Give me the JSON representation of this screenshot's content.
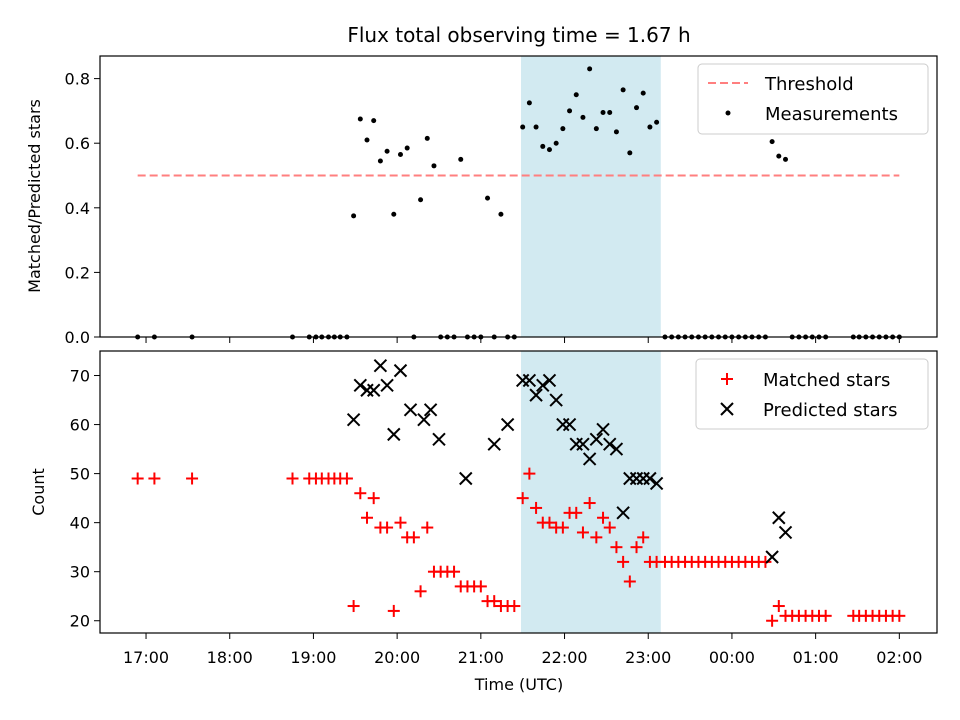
{
  "chart_data": [
    {
      "type": "scatter",
      "title": "Flux total observing time = 1.67 h",
      "xlabel": "",
      "ylabel": "Matched/Predicted stars",
      "ylim": [
        0,
        0.87
      ],
      "yticks": [
        0.0,
        0.2,
        0.4,
        0.6,
        0.8
      ],
      "ytick_labels": [
        "0.0",
        "0.2",
        "0.4",
        "0.6",
        "0.8"
      ],
      "x_unit": "hours since 00:00 UTC of first night (values above 24 are after midnight)",
      "highlight": {
        "x_start": 21.48,
        "x_end": 23.15,
        "color": "#add8e6"
      },
      "legend": {
        "position": "top-right",
        "entries": [
          "Threshold",
          "Measurements"
        ]
      },
      "series": [
        {
          "name": "Threshold",
          "kind": "line",
          "color": "#ff7f7f",
          "x": [
            16.9,
            26.0
          ],
          "y": [
            0.5,
            0.5
          ]
        },
        {
          "name": "Measurements",
          "kind": "points",
          "color": "#000000",
          "x": [
            16.9,
            17.1,
            17.55,
            18.75,
            18.95,
            19.03,
            19.1,
            19.18,
            19.25,
            19.32,
            19.4,
            19.48,
            19.56,
            19.64,
            19.72,
            19.8,
            19.88,
            19.96,
            20.04,
            20.12,
            20.2,
            20.28,
            20.36,
            20.44,
            20.52,
            20.6,
            20.68,
            20.76,
            20.84,
            20.92,
            21.0,
            21.08,
            21.16,
            21.24,
            21.32,
            21.4,
            21.5,
            21.58,
            21.66,
            21.74,
            21.82,
            21.9,
            21.98,
            22.06,
            22.14,
            22.22,
            22.3,
            22.38,
            22.46,
            22.54,
            22.62,
            22.7,
            22.78,
            22.86,
            22.94,
            23.02,
            23.1,
            23.2,
            23.28,
            23.36,
            23.44,
            23.52,
            23.6,
            23.68,
            23.76,
            23.84,
            23.92,
            24.0,
            24.08,
            24.16,
            24.24,
            24.32,
            24.4,
            24.48,
            24.56,
            24.64,
            24.72,
            24.8,
            24.88,
            24.96,
            25.04,
            25.12,
            25.45,
            25.52,
            25.6,
            25.68,
            25.76,
            25.84,
            25.92,
            26.0
          ],
          "y": [
            0.0,
            0.0,
            0.0,
            0.0,
            0.0,
            0.0,
            0.0,
            0.0,
            0.0,
            0.0,
            0.0,
            0.375,
            0.675,
            0.61,
            0.67,
            0.545,
            0.575,
            0.38,
            0.565,
            0.585,
            0.0,
            0.425,
            0.615,
            0.53,
            0.0,
            0.0,
            0.0,
            0.55,
            0.0,
            0.0,
            0.0,
            0.43,
            0.0,
            0.38,
            0.0,
            0.0,
            0.65,
            0.725,
            0.65,
            0.59,
            0.58,
            0.6,
            0.645,
            0.7,
            0.75,
            0.68,
            0.83,
            0.645,
            0.695,
            0.695,
            0.635,
            0.765,
            0.57,
            0.71,
            0.755,
            0.65,
            0.665,
            0.0,
            0.0,
            0.0,
            0.0,
            0.0,
            0.0,
            0.0,
            0.0,
            0.0,
            0.0,
            0.0,
            0.0,
            0.0,
            0.0,
            0.0,
            0.0,
            0.605,
            0.56,
            0.55,
            0.0,
            0.0,
            0.0,
            0.0,
            0.0,
            0.0,
            0.0,
            0.0,
            0.0,
            0.0,
            0.0,
            0.0,
            0.0,
            0.0
          ]
        }
      ]
    },
    {
      "type": "scatter",
      "title": "",
      "xlabel": "Time (UTC)",
      "ylabel": "Count",
      "ylim": [
        17.5,
        75
      ],
      "yticks": [
        20,
        30,
        40,
        50,
        60,
        70
      ],
      "ytick_labels": [
        "20",
        "30",
        "40",
        "50",
        "60",
        "70"
      ],
      "xlim": [
        16.45,
        26.45
      ],
      "xticks": [
        17,
        18,
        19,
        20,
        21,
        22,
        23,
        24,
        25,
        26
      ],
      "xtick_labels": [
        "17:00",
        "18:00",
        "19:00",
        "20:00",
        "21:00",
        "22:00",
        "23:00",
        "00:00",
        "01:00",
        "02:00"
      ],
      "highlight": {
        "x_start": 21.48,
        "x_end": 23.15,
        "color": "#add8e6"
      },
      "legend": {
        "position": "top-right",
        "entries": [
          "Matched stars",
          "Predicted stars"
        ]
      },
      "series": [
        {
          "name": "Matched stars",
          "marker": "plus",
          "color": "#ff0000",
          "x": [
            16.9,
            17.1,
            17.55,
            18.75,
            18.95,
            19.03,
            19.1,
            19.18,
            19.25,
            19.32,
            19.4,
            19.48,
            19.56,
            19.64,
            19.72,
            19.8,
            19.88,
            19.96,
            20.04,
            20.12,
            20.2,
            20.28,
            20.36,
            20.44,
            20.52,
            20.6,
            20.68,
            20.76,
            20.84,
            20.92,
            21.0,
            21.08,
            21.16,
            21.24,
            21.32,
            21.4,
            21.5,
            21.58,
            21.66,
            21.74,
            21.82,
            21.9,
            21.98,
            22.06,
            22.14,
            22.22,
            22.3,
            22.38,
            22.46,
            22.54,
            22.62,
            22.7,
            22.78,
            22.86,
            22.94,
            23.02,
            23.1,
            23.2,
            23.28,
            23.36,
            23.44,
            23.52,
            23.6,
            23.68,
            23.76,
            23.84,
            23.92,
            24.0,
            24.08,
            24.16,
            24.24,
            24.32,
            24.4,
            24.48,
            24.56,
            24.64,
            24.72,
            24.8,
            24.88,
            24.96,
            25.04,
            25.12,
            25.45,
            25.52,
            25.6,
            25.68,
            25.76,
            25.84,
            25.92,
            26.0
          ],
          "y": [
            49,
            49,
            49,
            49,
            49,
            49,
            49,
            49,
            49,
            49,
            49,
            23,
            46,
            41,
            45,
            39,
            39,
            22,
            40,
            37,
            37,
            26,
            39,
            30,
            30,
            30,
            30,
            27,
            27,
            27,
            27,
            24,
            24,
            23,
            23,
            23,
            45,
            50,
            43,
            40,
            40,
            39,
            39,
            42,
            42,
            38,
            44,
            37,
            41,
            39,
            35,
            32,
            28,
            35,
            37,
            32,
            32,
            32,
            32,
            32,
            32,
            32,
            32,
            32,
            32,
            32,
            32,
            32,
            32,
            32,
            32,
            32,
            32,
            20,
            23,
            21,
            21,
            21,
            21,
            21,
            21,
            21,
            21,
            21,
            21,
            21,
            21,
            21,
            21,
            21
          ]
        },
        {
          "name": "Predicted stars",
          "marker": "x",
          "color": "#000000",
          "x": [
            19.48,
            19.56,
            19.64,
            19.72,
            19.8,
            19.88,
            19.96,
            20.04,
            20.16,
            20.32,
            20.4,
            20.5,
            20.82,
            21.16,
            21.32,
            21.5,
            21.58,
            21.66,
            21.74,
            21.82,
            21.9,
            21.98,
            22.06,
            22.14,
            22.22,
            22.3,
            22.38,
            22.46,
            22.54,
            22.62,
            22.7,
            22.78,
            22.86,
            22.94,
            23.02,
            23.1,
            24.48,
            24.56,
            24.64
          ],
          "y": [
            61,
            68,
            67,
            67,
            72,
            68,
            58,
            71,
            63,
            61,
            63,
            57,
            49,
            56,
            60,
            69,
            69,
            66,
            68,
            69,
            65,
            60,
            60,
            56,
            56,
            53,
            57,
            59,
            56,
            55,
            42,
            49,
            49,
            49,
            49,
            48,
            33,
            41,
            38
          ]
        }
      ]
    }
  ]
}
